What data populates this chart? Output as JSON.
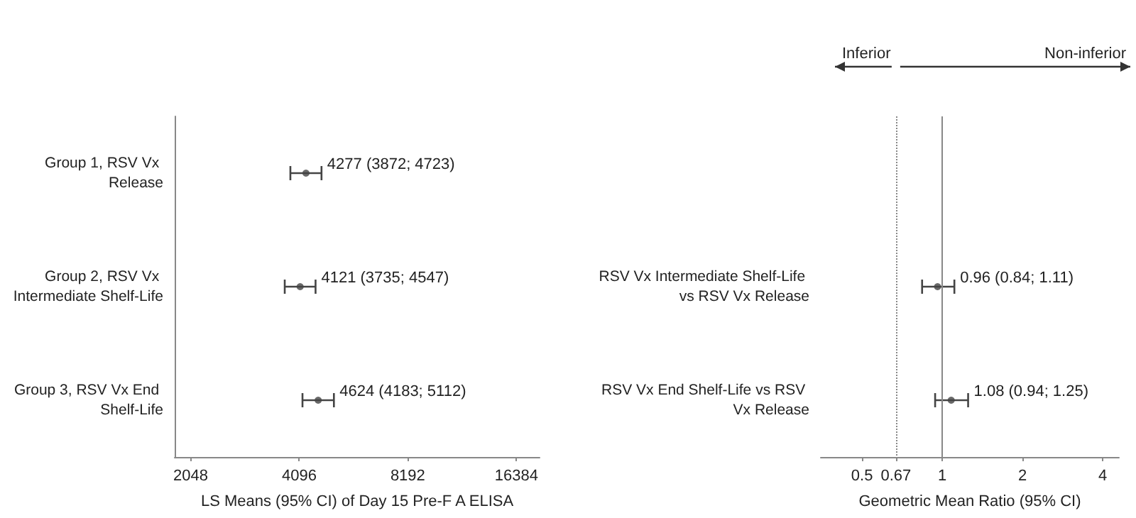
{
  "chart_data": [
    {
      "type": "scatter",
      "orientation": "horizontal",
      "categories": [
        "Group 1, RSV Vx Release",
        "Group 2, RSV Vx Intermediate Shelf-Life",
        "Group 3, RSV Vx End Shelf-Life"
      ],
      "values": [
        4277,
        4121,
        4624
      ],
      "errors": [
        [
          3872,
          4723
        ],
        [
          3735,
          4547
        ],
        [
          4183,
          5112
        ]
      ],
      "value_labels": [
        "4277 (3872; 4723)",
        "4121 (3735; 4547)",
        "4624 (4183; 5112)"
      ],
      "color": "#444444",
      "marker": "circle",
      "xlabel": "LS Means (95% CI) of Day 15 Pre-F A ELISA",
      "xlim": [
        1850,
        19000
      ],
      "xticks": [
        2048,
        4096,
        8192,
        16384
      ],
      "log": "x",
      "grid": false
    },
    {
      "type": "scatter",
      "orientation": "horizontal",
      "categories": [
        null,
        "RSV Vx Intermediate Shelf-Life vs RSV Vx Release",
        "RSV Vx End Shelf-Life vs RSV Vx Release"
      ],
      "values": [
        null,
        0.96,
        1.08
      ],
      "errors": [
        null,
        [
          0.84,
          1.11
        ],
        [
          0.94,
          1.25
        ]
      ],
      "value_labels": [
        null,
        "0.96 (0.84; 1.11)",
        "1.08 (0.94; 1.25)"
      ],
      "color": "#444444",
      "xlabel": "Geometric Mean Ratio (95% CI)",
      "xlim": [
        0.35,
        4.6
      ],
      "xticks": [
        0.5,
        0.67,
        1,
        2,
        4
      ],
      "log": "x",
      "grid": false,
      "ref_lines": [
        {
          "axis": "x",
          "value": 0.67,
          "line_style": "dotted",
          "color": "#888888"
        },
        {
          "axis": "x",
          "value": 1,
          "line_style": "solid",
          "color": "#888888"
        }
      ],
      "annotations": [
        "Inferior",
        "Non-inferior"
      ]
    }
  ]
}
